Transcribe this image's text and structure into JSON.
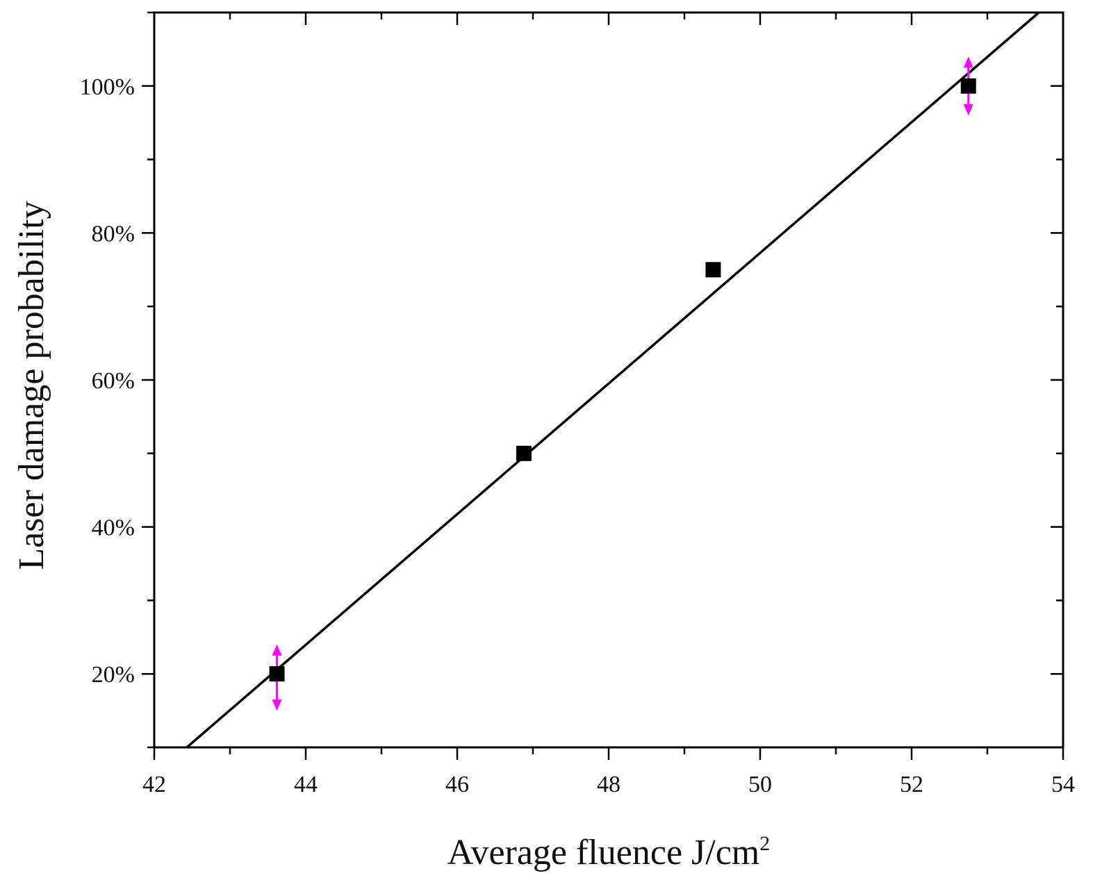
{
  "chart_data": {
    "type": "scatter",
    "xlabel": "Average fluence J/cm",
    "xlabel_superscript": "2",
    "ylabel": "Laser damage probability",
    "xlim": [
      42,
      54
    ],
    "ylim": [
      0.1,
      1.1
    ],
    "x_ticks": [
      42,
      44,
      46,
      48,
      50,
      52,
      54
    ],
    "x_tick_labels": [
      "42",
      "44",
      "46",
      "48",
      "50",
      "52",
      "54"
    ],
    "y_ticks": [
      0.2,
      0.4,
      0.6,
      0.8,
      1.0
    ],
    "y_tick_labels": [
      "20%",
      "40%",
      "60%",
      "80%",
      "100%"
    ],
    "grid": false,
    "series": [
      {
        "x": [
          43.62,
          46.88,
          49.38,
          52.75
        ],
        "y": [
          0.2,
          0.5,
          0.75,
          1.0
        ],
        "marker": "square",
        "color": "#000000"
      }
    ],
    "fit_line": {
      "x": [
        42.43,
        53.68
      ],
      "y": [
        0.1,
        1.1
      ],
      "color": "#000000"
    },
    "error_bars": [
      {
        "x": 43.62,
        "y": 0.2,
        "low": 0.15,
        "high": 0.24
      },
      {
        "x": 52.75,
        "y": 1.0,
        "low": 0.96,
        "high": 1.04
      }
    ],
    "error_bar_color": "#ff00ff"
  }
}
